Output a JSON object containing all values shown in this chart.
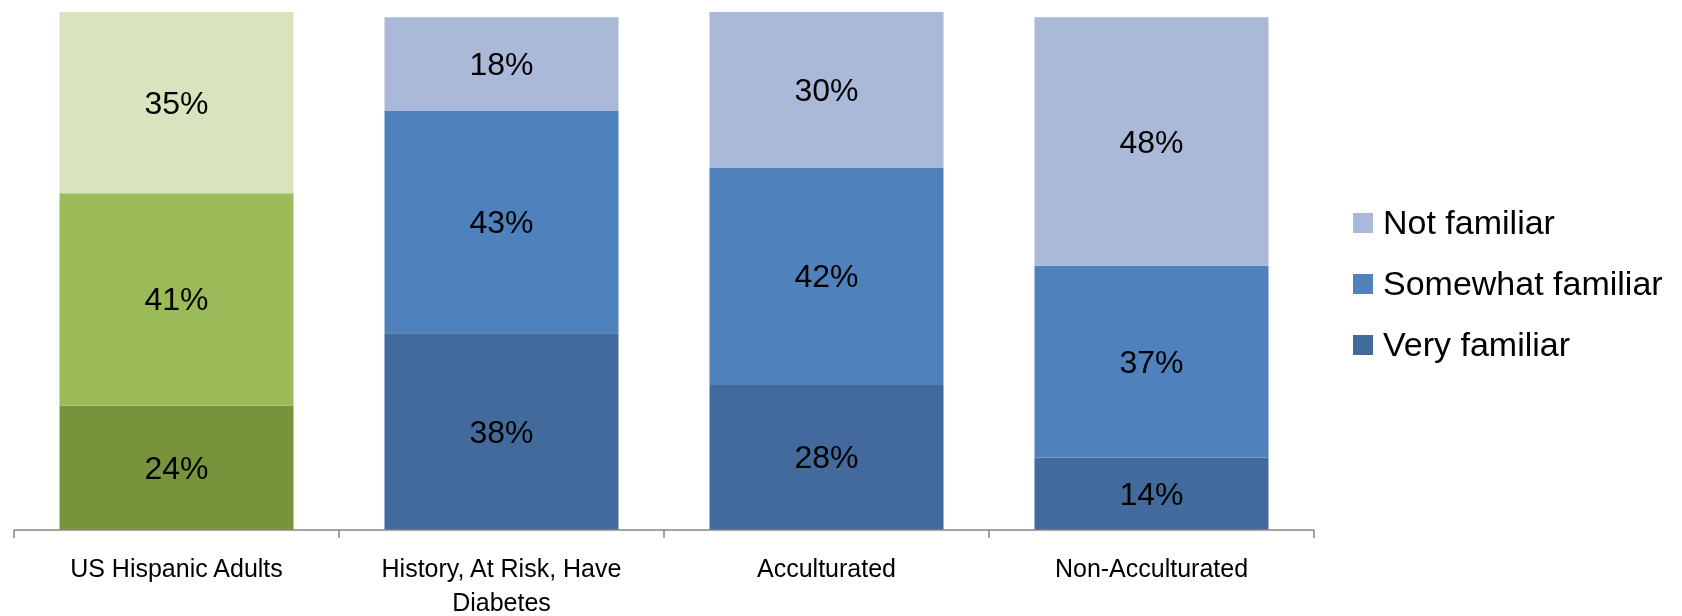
{
  "chart_data": {
    "type": "bar",
    "stacked": true,
    "categories": [
      "US Hispanic Adults",
      "History, At Risk, Have Diabetes",
      "Acculturated",
      "Non-Acculturated"
    ],
    "series": [
      {
        "name": "Very familiar",
        "color": "#426a9c",
        "colors": [
          "#77933c",
          "#426a9c",
          "#426a9c",
          "#426a9c"
        ],
        "values": [
          24,
          38,
          28,
          14
        ],
        "value_labels": [
          "24%",
          "38%",
          "28%",
          "14%"
        ]
      },
      {
        "name": "Somewhat familiar",
        "color": "#4f81bd",
        "colors": [
          "#9bbb59",
          "#4f81bd",
          "#4f81bd",
          "#4f81bd"
        ],
        "values": [
          41,
          43,
          42,
          37
        ],
        "value_labels": [
          "41%",
          "43%",
          "42%",
          "37%"
        ]
      },
      {
        "name": "Not familiar",
        "color": "#aab9d8",
        "colors": [
          "#d7e4bd",
          "#aab9d8",
          "#aab9d8",
          "#aab9d8"
        ],
        "values": [
          35,
          18,
          30,
          48
        ],
        "value_labels": [
          "35%",
          "18%",
          "30%",
          "48%"
        ]
      }
    ],
    "legend": "right"
  }
}
